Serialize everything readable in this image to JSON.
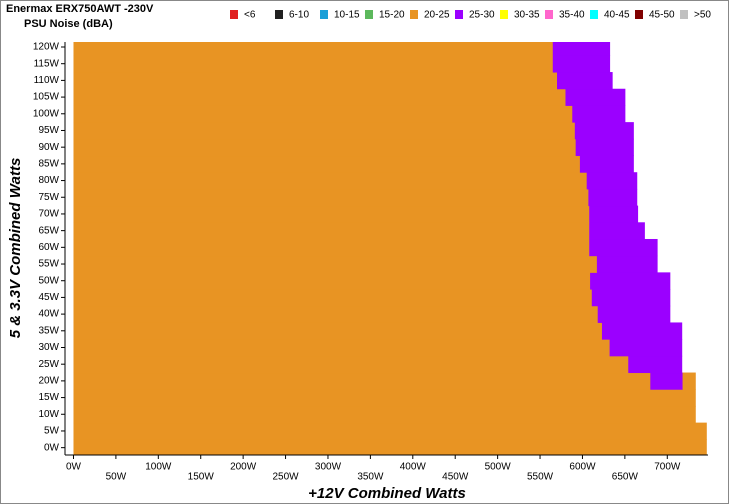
{
  "chart_data": {
    "type": "stacked-hbar",
    "title": "Enermax ERX750AWT -230V",
    "subtitle": "PSU Noise (dBA)",
    "xlabel": "+12V Combined Watts",
    "ylabel": "5 & 3.3V Combined Watts",
    "legend": [
      {
        "name": "<6",
        "color": "#e02020"
      },
      {
        "name": "6-10",
        "color": "#202020"
      },
      {
        "name": "10-15",
        "color": "#1a9fd8"
      },
      {
        "name": "15-20",
        "color": "#5cb85c"
      },
      {
        "name": "20-25",
        "color": "#e89423"
      },
      {
        "name": "25-30",
        "color": "#9b00ff"
      },
      {
        "name": "30-35",
        "color": "#ffff00"
      },
      {
        "name": "35-40",
        "color": "#ff66cc"
      },
      {
        "name": "40-45",
        "color": "#00ffff"
      },
      {
        "name": "45-50",
        "color": "#800000"
      },
      {
        "name": ">50",
        "color": "#c0c0c0"
      }
    ],
    "y": [
      0,
      5,
      10,
      15,
      20,
      25,
      30,
      35,
      40,
      45,
      50,
      55,
      60,
      65,
      70,
      75,
      80,
      85,
      90,
      95,
      100,
      105,
      110,
      115,
      120
    ],
    "series": [
      {
        "color": "#e89423",
        "values": [
          746,
          746,
          733,
          733,
          680,
          654,
          632,
          623,
          618,
          611,
          609,
          617,
          608,
          608,
          608,
          607,
          605,
          597,
          592,
          591,
          588,
          580,
          570,
          565,
          565
        ]
      },
      {
        "color": "#9b00ff",
        "values": [
          0,
          0,
          0,
          0,
          38,
          63,
          85,
          94,
          85,
          92,
          94,
          71,
          80,
          65,
          57,
          57,
          59,
          63,
          68,
          69,
          62,
          70,
          65,
          67,
          67
        ]
      },
      {
        "color": "#e89423",
        "values": [
          0,
          0,
          0,
          0,
          15,
          0,
          0,
          0,
          0,
          0,
          0,
          0,
          0,
          0,
          0,
          0,
          0,
          0,
          0,
          0,
          0,
          0,
          0,
          0,
          0
        ]
      }
    ],
    "xlim": [
      -10,
      748
    ],
    "ylim": [
      -2.2,
      121.5
    ],
    "xticks": [
      {
        "value": 0,
        "label": "0W"
      },
      {
        "value": 50,
        "label": "50W"
      },
      {
        "value": 100,
        "label": "100W"
      },
      {
        "value": 150,
        "label": "150W"
      },
      {
        "value": 200,
        "label": "200W"
      },
      {
        "value": 250,
        "label": "250W"
      },
      {
        "value": 300,
        "label": "300W"
      },
      {
        "value": 350,
        "label": "350W"
      },
      {
        "value": 400,
        "label": "400W"
      },
      {
        "value": 450,
        "label": "450W"
      },
      {
        "value": 500,
        "label": "500W"
      },
      {
        "value": 550,
        "label": "550W"
      },
      {
        "value": 600,
        "label": "600W"
      },
      {
        "value": 650,
        "label": "650W"
      },
      {
        "value": 700,
        "label": "700W"
      }
    ],
    "yticks": [
      {
        "value": 0,
        "label": "0W"
      },
      {
        "value": 5,
        "label": "5W"
      },
      {
        "value": 10,
        "label": "10W"
      },
      {
        "value": 15,
        "label": "15W"
      },
      {
        "value": 20,
        "label": "20W"
      },
      {
        "value": 25,
        "label": "25W"
      },
      {
        "value": 30,
        "label": "30W"
      },
      {
        "value": 35,
        "label": "35W"
      },
      {
        "value": 40,
        "label": "40W"
      },
      {
        "value": 45,
        "label": "45W"
      },
      {
        "value": 50,
        "label": "50W"
      },
      {
        "value": 55,
        "label": "55W"
      },
      {
        "value": 60,
        "label": "60W"
      },
      {
        "value": 65,
        "label": "65W"
      },
      {
        "value": 70,
        "label": "70W"
      },
      {
        "value": 75,
        "label": "75W"
      },
      {
        "value": 80,
        "label": "80W"
      },
      {
        "value": 85,
        "label": "85W"
      },
      {
        "value": 90,
        "label": "90W"
      },
      {
        "value": 95,
        "label": "95W"
      },
      {
        "value": 100,
        "label": "100W"
      },
      {
        "value": 105,
        "label": "105W"
      },
      {
        "value": 110,
        "label": "110W"
      },
      {
        "value": 115,
        "label": "115W"
      },
      {
        "value": 120,
        "label": "120W"
      }
    ]
  }
}
